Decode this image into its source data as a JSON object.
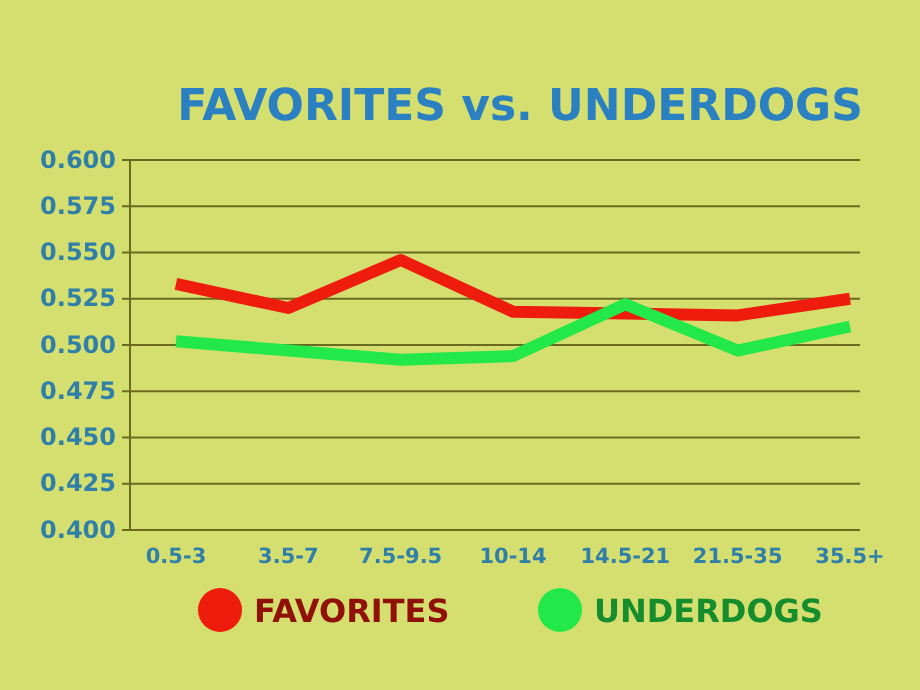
{
  "chart_data": {
    "type": "line",
    "title": "FAVORITES vs. UNDERDOGS",
    "categories": [
      "0.5-3",
      "3.5-7",
      "7.5-9.5",
      "10-14",
      "14.5-21",
      "21.5-35",
      "35.5+"
    ],
    "series": [
      {
        "name": "FAVORITES",
        "color": "#ee1c0c",
        "values": [
          0.533,
          0.52,
          0.546,
          0.518,
          0.517,
          0.516,
          0.525
        ]
      },
      {
        "name": "UNDERDOGS",
        "color": "#22e84a",
        "values": [
          0.502,
          0.497,
          0.492,
          0.494,
          0.522,
          0.497,
          0.51
        ]
      }
    ],
    "ylim": [
      0.4,
      0.6
    ],
    "yticks": [
      {
        "value": 0.4,
        "label": "0.400"
      },
      {
        "value": 0.425,
        "label": "0.425"
      },
      {
        "value": 0.45,
        "label": "0.450"
      },
      {
        "value": 0.475,
        "label": "0.475"
      },
      {
        "value": 0.5,
        "label": "0.500"
      },
      {
        "value": 0.525,
        "label": "0.525"
      },
      {
        "value": 0.55,
        "label": "0.550"
      },
      {
        "value": 0.575,
        "label": "0.575"
      },
      {
        "value": 0.6,
        "label": "0.600"
      }
    ],
    "grid": "y",
    "legend": "bottom",
    "marker": "none",
    "line_style": "solid"
  }
}
